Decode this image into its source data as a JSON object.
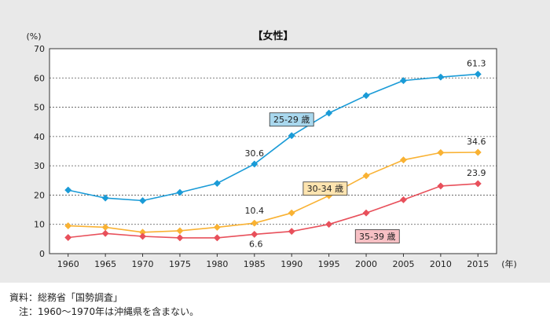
{
  "chart_data": {
    "type": "line",
    "title": "【女性】",
    "ylabel": "(%)",
    "xunit": "(年)",
    "ylim": [
      0,
      70
    ],
    "yticks": [
      0,
      10,
      20,
      30,
      40,
      50,
      60,
      70
    ],
    "grid": true,
    "x": [
      1960,
      1965,
      1970,
      1975,
      1980,
      1985,
      1990,
      1995,
      2000,
      2005,
      2010,
      2015
    ],
    "series": [
      {
        "name": "25-29 歳",
        "color": "#1a9bd7",
        "label_bg": "#a9d8ee",
        "values": [
          21.7,
          19.0,
          18.1,
          20.9,
          24.0,
          30.6,
          40.3,
          48.0,
          54.0,
          59.1,
          60.3,
          61.3
        ],
        "point_labels": [
          {
            "index": 5,
            "text": "30.6"
          },
          {
            "index": 11,
            "text": "61.3"
          }
        ]
      },
      {
        "name": "30-34 歳",
        "color": "#f9b233",
        "label_bg": "#fde4b0",
        "values": [
          9.5,
          9.0,
          7.3,
          7.8,
          9.0,
          10.4,
          13.9,
          19.8,
          26.6,
          32.0,
          34.5,
          34.6
        ],
        "point_labels": [
          {
            "index": 5,
            "text": "10.4"
          },
          {
            "index": 11,
            "text": "34.6"
          }
        ]
      },
      {
        "name": "35-39 歳",
        "color": "#e8505b",
        "label_bg": "#f7c0c4",
        "values": [
          5.5,
          6.9,
          5.9,
          5.4,
          5.4,
          6.6,
          7.6,
          10.0,
          13.9,
          18.4,
          23.1,
          23.9
        ],
        "point_labels": [
          {
            "index": 5,
            "text": "6.6"
          },
          {
            "index": 11,
            "text": "23.9"
          }
        ]
      }
    ]
  },
  "notes": {
    "source": "資料：総務省「国勢調査」",
    "note": "　注：1960～1970年は沖縄県を含まない。"
  }
}
